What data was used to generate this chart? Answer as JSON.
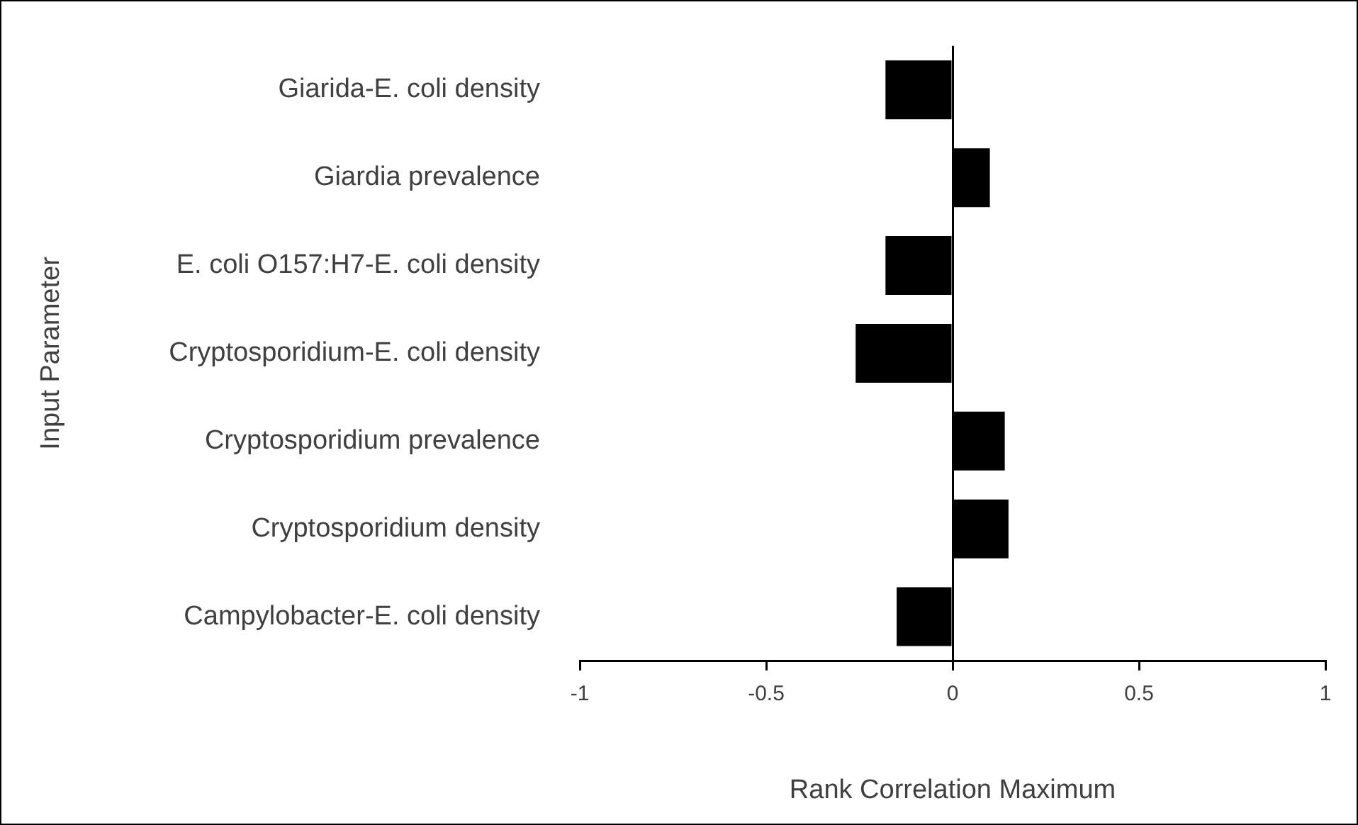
{
  "chart_data": {
    "type": "bar",
    "orientation": "horizontal",
    "xlabel": "Rank Correlation Maximum",
    "ylabel": "Input Parameter",
    "categories": [
      "Giarida-E. coli density",
      "Giardia prevalence",
      "E. coli O157:H7-E. coli density",
      "Cryptosporidium-E. coli density",
      "Cryptosporidium prevalence",
      "Cryptosporidium density",
      "Campylobacter-E. coli density"
    ],
    "values": [
      -0.18,
      0.1,
      -0.18,
      -0.26,
      0.14,
      0.15,
      -0.15
    ],
    "color": "#000000",
    "xlim": [
      -1,
      1
    ],
    "xticks": [
      -1,
      -0.5,
      0,
      0.5,
      1
    ]
  }
}
